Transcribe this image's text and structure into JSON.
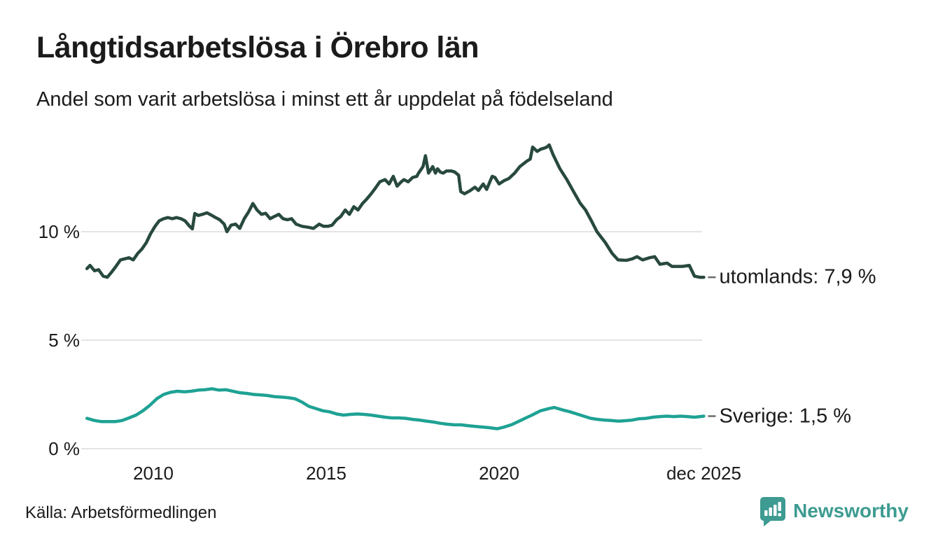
{
  "header": {
    "title": "Långtidsarbetslösa i Örebro län",
    "subtitle": "Andel som varit arbetslösa i minst ett år uppdelat på födelseland"
  },
  "footer": {
    "source": "Källa: Arbetsförmedlingen",
    "brand_name": "Newsworthy",
    "brand_icon": "bar-chart-speech-bubble-icon"
  },
  "colors": {
    "utomlands_line": "#28493e",
    "sverige_line": "#1ea294",
    "gridline": "#e4e4e4",
    "text": "#1b1b1b",
    "connector_dash": "#6b6b6b",
    "brand_teal": "#3d9b91"
  },
  "chart_data": {
    "type": "line",
    "title": "Långtidsarbetslösa i Örebro län",
    "subtitle": "Andel som varit arbetslösa i minst ett år uppdelat på födelseland",
    "unit": "%",
    "grid": "horizontal-only",
    "legend_position": "right-end-labels",
    "ylim": [
      0,
      15.5
    ],
    "x_range_years": [
      2008.08,
      2025.92
    ],
    "y_ticks": [
      {
        "value": 10,
        "label": "10 %"
      },
      {
        "value": 5,
        "label": "5 %"
      },
      {
        "value": 0,
        "label": "0 %"
      }
    ],
    "x_ticks": [
      {
        "value": 2010,
        "label": "2010"
      },
      {
        "value": 2015,
        "label": "2015"
      },
      {
        "value": 2020,
        "label": "2020"
      },
      {
        "value": 2025.92,
        "label": "dec 2025"
      }
    ],
    "series": [
      {
        "name": "utomlands",
        "end_label": "utomlands: 7,9 %",
        "last_value_text": "7,9 %",
        "color": "#28493e",
        "points": [
          [
            2008.08,
            8.3
          ],
          [
            2008.17,
            8.45
          ],
          [
            2008.3,
            8.2
          ],
          [
            2008.42,
            8.25
          ],
          [
            2008.55,
            7.95
          ],
          [
            2008.67,
            7.9
          ],
          [
            2008.8,
            8.15
          ],
          [
            2008.92,
            8.4
          ],
          [
            2009.05,
            8.7
          ],
          [
            2009.17,
            8.75
          ],
          [
            2009.3,
            8.8
          ],
          [
            2009.42,
            8.7
          ],
          [
            2009.55,
            9.0
          ],
          [
            2009.67,
            9.2
          ],
          [
            2009.8,
            9.5
          ],
          [
            2009.92,
            9.9
          ],
          [
            2010.05,
            10.25
          ],
          [
            2010.17,
            10.5
          ],
          [
            2010.3,
            10.6
          ],
          [
            2010.42,
            10.65
          ],
          [
            2010.55,
            10.6
          ],
          [
            2010.67,
            10.65
          ],
          [
            2010.8,
            10.6
          ],
          [
            2010.92,
            10.5
          ],
          [
            2011.05,
            10.25
          ],
          [
            2011.13,
            10.13
          ],
          [
            2011.2,
            10.84
          ],
          [
            2011.3,
            10.75
          ],
          [
            2011.42,
            10.8
          ],
          [
            2011.55,
            10.87
          ],
          [
            2011.67,
            10.77
          ],
          [
            2011.8,
            10.65
          ],
          [
            2011.92,
            10.55
          ],
          [
            2012.05,
            10.35
          ],
          [
            2012.13,
            10.0
          ],
          [
            2012.25,
            10.3
          ],
          [
            2012.38,
            10.35
          ],
          [
            2012.5,
            10.15
          ],
          [
            2012.63,
            10.6
          ],
          [
            2012.75,
            10.9
          ],
          [
            2012.88,
            11.3
          ],
          [
            2013.0,
            11.0
          ],
          [
            2013.13,
            10.8
          ],
          [
            2013.25,
            10.85
          ],
          [
            2013.38,
            10.6
          ],
          [
            2013.5,
            10.7
          ],
          [
            2013.63,
            10.8
          ],
          [
            2013.75,
            10.6
          ],
          [
            2013.88,
            10.55
          ],
          [
            2014.0,
            10.6
          ],
          [
            2014.13,
            10.35
          ],
          [
            2014.3,
            10.25
          ],
          [
            2014.5,
            10.2
          ],
          [
            2014.63,
            10.15
          ],
          [
            2014.8,
            10.35
          ],
          [
            2014.92,
            10.25
          ],
          [
            2015.05,
            10.25
          ],
          [
            2015.17,
            10.3
          ],
          [
            2015.3,
            10.55
          ],
          [
            2015.42,
            10.7
          ],
          [
            2015.55,
            11.0
          ],
          [
            2015.67,
            10.8
          ],
          [
            2015.8,
            11.15
          ],
          [
            2015.92,
            11.0
          ],
          [
            2016.05,
            11.3
          ],
          [
            2016.17,
            11.5
          ],
          [
            2016.3,
            11.75
          ],
          [
            2016.42,
            12.0
          ],
          [
            2016.55,
            12.3
          ],
          [
            2016.7,
            12.4
          ],
          [
            2016.82,
            12.2
          ],
          [
            2016.94,
            12.55
          ],
          [
            2017.05,
            12.1
          ],
          [
            2017.17,
            12.3
          ],
          [
            2017.25,
            12.4
          ],
          [
            2017.37,
            12.3
          ],
          [
            2017.5,
            12.5
          ],
          [
            2017.62,
            12.55
          ],
          [
            2017.67,
            12.7
          ],
          [
            2017.8,
            13.0
          ],
          [
            2017.87,
            13.5
          ],
          [
            2017.96,
            12.7
          ],
          [
            2018.08,
            13.0
          ],
          [
            2018.16,
            12.7
          ],
          [
            2018.22,
            12.9
          ],
          [
            2018.3,
            12.75
          ],
          [
            2018.38,
            12.7
          ],
          [
            2018.48,
            12.8
          ],
          [
            2018.62,
            12.8
          ],
          [
            2018.72,
            12.75
          ],
          [
            2018.83,
            12.6
          ],
          [
            2018.89,
            11.85
          ],
          [
            2019.0,
            11.75
          ],
          [
            2019.17,
            11.9
          ],
          [
            2019.3,
            12.05
          ],
          [
            2019.4,
            11.9
          ],
          [
            2019.54,
            12.2
          ],
          [
            2019.64,
            11.95
          ],
          [
            2019.8,
            12.55
          ],
          [
            2019.88,
            12.5
          ],
          [
            2020.0,
            12.2
          ],
          [
            2020.14,
            12.35
          ],
          [
            2020.28,
            12.45
          ],
          [
            2020.45,
            12.7
          ],
          [
            2020.6,
            13.0
          ],
          [
            2020.8,
            13.25
          ],
          [
            2020.9,
            13.35
          ],
          [
            2020.97,
            13.9
          ],
          [
            2021.1,
            13.7
          ],
          [
            2021.2,
            13.8
          ],
          [
            2021.3,
            13.85
          ],
          [
            2021.38,
            13.9
          ],
          [
            2021.45,
            14.0
          ],
          [
            2021.56,
            13.55
          ],
          [
            2021.76,
            12.9
          ],
          [
            2021.96,
            12.4
          ],
          [
            2022.17,
            11.8
          ],
          [
            2022.35,
            11.3
          ],
          [
            2022.5,
            11.0
          ],
          [
            2022.67,
            10.5
          ],
          [
            2022.83,
            10.0
          ],
          [
            2023.07,
            9.5
          ],
          [
            2023.27,
            9.0
          ],
          [
            2023.44,
            8.7
          ],
          [
            2023.68,
            8.68
          ],
          [
            2023.85,
            8.75
          ],
          [
            2023.99,
            8.85
          ],
          [
            2024.15,
            8.7
          ],
          [
            2024.35,
            8.8
          ],
          [
            2024.5,
            8.85
          ],
          [
            2024.65,
            8.5
          ],
          [
            2024.86,
            8.55
          ],
          [
            2025.0,
            8.4
          ],
          [
            2025.3,
            8.4
          ],
          [
            2025.5,
            8.45
          ],
          [
            2025.65,
            7.95
          ],
          [
            2025.8,
            7.9
          ],
          [
            2025.92,
            7.9
          ]
        ]
      },
      {
        "name": "Sverige",
        "end_label": "Sverige: 1,5 %",
        "last_value_text": "1,5 %",
        "color": "#1ea294",
        "points": [
          [
            2008.08,
            1.4
          ],
          [
            2008.3,
            1.3
          ],
          [
            2008.5,
            1.25
          ],
          [
            2008.7,
            1.25
          ],
          [
            2008.9,
            1.25
          ],
          [
            2009.1,
            1.3
          ],
          [
            2009.3,
            1.42
          ],
          [
            2009.5,
            1.55
          ],
          [
            2009.7,
            1.75
          ],
          [
            2009.9,
            2.0
          ],
          [
            2010.1,
            2.3
          ],
          [
            2010.3,
            2.5
          ],
          [
            2010.5,
            2.6
          ],
          [
            2010.7,
            2.65
          ],
          [
            2010.9,
            2.62
          ],
          [
            2011.1,
            2.65
          ],
          [
            2011.3,
            2.7
          ],
          [
            2011.5,
            2.72
          ],
          [
            2011.7,
            2.76
          ],
          [
            2011.9,
            2.7
          ],
          [
            2012.1,
            2.72
          ],
          [
            2012.3,
            2.65
          ],
          [
            2012.5,
            2.58
          ],
          [
            2012.7,
            2.55
          ],
          [
            2012.9,
            2.5
          ],
          [
            2013.1,
            2.48
          ],
          [
            2013.3,
            2.45
          ],
          [
            2013.5,
            2.4
          ],
          [
            2013.7,
            2.38
          ],
          [
            2013.9,
            2.35
          ],
          [
            2014.1,
            2.3
          ],
          [
            2014.3,
            2.15
          ],
          [
            2014.5,
            1.95
          ],
          [
            2014.7,
            1.85
          ],
          [
            2014.9,
            1.75
          ],
          [
            2015.1,
            1.7
          ],
          [
            2015.3,
            1.6
          ],
          [
            2015.5,
            1.55
          ],
          [
            2015.7,
            1.58
          ],
          [
            2015.9,
            1.6
          ],
          [
            2016.1,
            1.58
          ],
          [
            2016.3,
            1.55
          ],
          [
            2016.5,
            1.5
          ],
          [
            2016.7,
            1.45
          ],
          [
            2016.9,
            1.42
          ],
          [
            2017.1,
            1.42
          ],
          [
            2017.3,
            1.4
          ],
          [
            2017.5,
            1.35
          ],
          [
            2017.7,
            1.32
          ],
          [
            2017.9,
            1.27
          ],
          [
            2018.1,
            1.23
          ],
          [
            2018.3,
            1.17
          ],
          [
            2018.5,
            1.13
          ],
          [
            2018.7,
            1.1
          ],
          [
            2018.9,
            1.1
          ],
          [
            2019.1,
            1.06
          ],
          [
            2019.3,
            1.03
          ],
          [
            2019.5,
            1.0
          ],
          [
            2019.7,
            0.97
          ],
          [
            2019.95,
            0.92
          ],
          [
            2020.15,
            1.0
          ],
          [
            2020.35,
            1.1
          ],
          [
            2020.55,
            1.25
          ],
          [
            2020.75,
            1.4
          ],
          [
            2020.95,
            1.55
          ],
          [
            2021.2,
            1.75
          ],
          [
            2021.45,
            1.85
          ],
          [
            2021.6,
            1.9
          ],
          [
            2021.85,
            1.78
          ],
          [
            2022.05,
            1.7
          ],
          [
            2022.25,
            1.6
          ],
          [
            2022.45,
            1.5
          ],
          [
            2022.65,
            1.4
          ],
          [
            2022.85,
            1.35
          ],
          [
            2023.05,
            1.32
          ],
          [
            2023.25,
            1.3
          ],
          [
            2023.45,
            1.27
          ],
          [
            2023.65,
            1.29
          ],
          [
            2023.85,
            1.32
          ],
          [
            2024.05,
            1.38
          ],
          [
            2024.25,
            1.4
          ],
          [
            2024.45,
            1.45
          ],
          [
            2024.65,
            1.48
          ],
          [
            2024.85,
            1.5
          ],
          [
            2025.05,
            1.48
          ],
          [
            2025.25,
            1.5
          ],
          [
            2025.45,
            1.48
          ],
          [
            2025.65,
            1.45
          ],
          [
            2025.92,
            1.5
          ]
        ]
      }
    ]
  }
}
